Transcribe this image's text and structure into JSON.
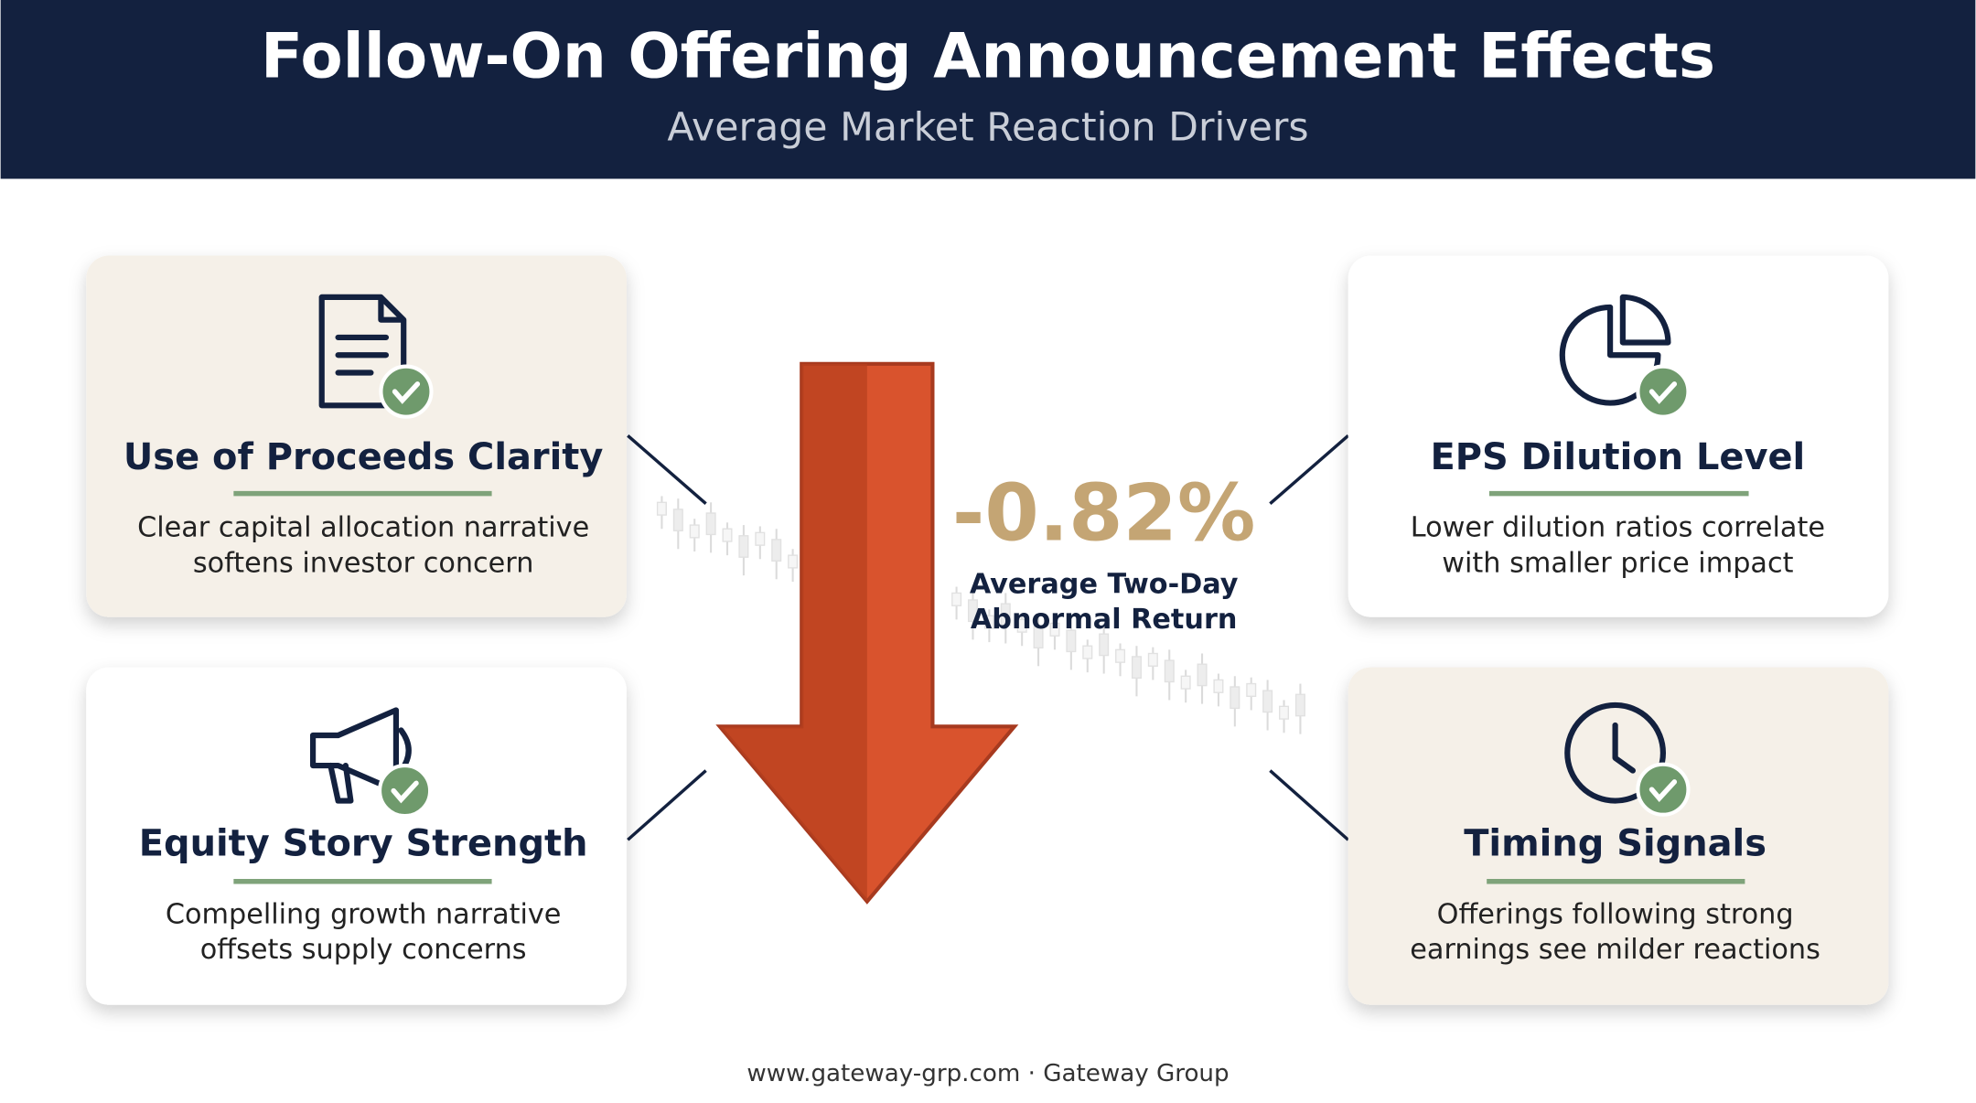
{
  "header": {
    "title": "Follow-On Offering Announcement Effects",
    "subtitle": "Average Market Reaction Drivers"
  },
  "center": {
    "value": "-0.82%",
    "label_lines": [
      "Average Two-Day",
      "Abnormal Return"
    ]
  },
  "cards": [
    {
      "title": "Use of Proceeds Clarity",
      "lines": [
        "Clear capital allocation narrative",
        "softens investor concern"
      ]
    },
    {
      "title": "EPS Dilution Level",
      "lines": [
        "Lower dilution ratios correlate",
        "with smaller price impact"
      ]
    },
    {
      "title": "Equity Story Strength",
      "lines": [
        "Compelling growth narrative",
        "offsets supply concerns"
      ]
    },
    {
      "title": "Timing Signals",
      "lines": [
        "Offerings following strong",
        "earnings see milder reactions"
      ]
    }
  ],
  "footer": "www.gateway-grp.com · Gateway Group"
}
